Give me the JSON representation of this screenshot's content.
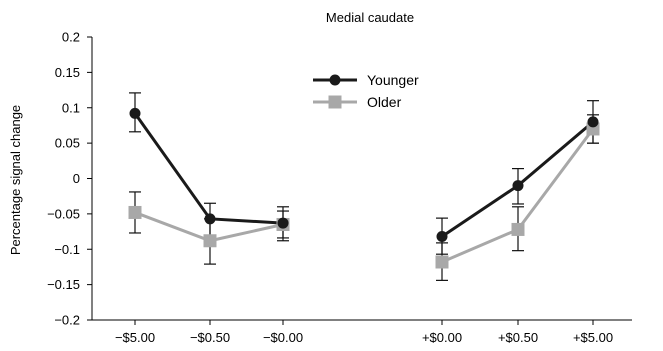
{
  "chart_data": {
    "type": "line",
    "title": "Medial caudate",
    "ylabel": "Percentage signal change",
    "xlabel": "",
    "ylim": [
      -0.2,
      0.2
    ],
    "yticks": [
      0.2,
      0.15,
      0.1,
      0.05,
      0,
      -0.05,
      -0.1,
      -0.15,
      -0.2
    ],
    "ytick_labels": [
      "0.2",
      "0.15",
      "0.1",
      "0.05",
      "0",
      "−0.05",
      "−0.1",
      "−0.15",
      "−0.2"
    ],
    "categories": [
      "−$5.00",
      "−$0.50",
      "−$0.00",
      "+$0.00",
      "+$0.50",
      "+$5.00"
    ],
    "legend_position": "top-center",
    "series": [
      {
        "name": "Younger",
        "color": "#1a1a1a",
        "marker": "circle",
        "groups": [
          {
            "categories": [
              "−$5.00",
              "−$0.50",
              "−$0.00"
            ],
            "values": [
              0.092,
              -0.057,
              -0.063
            ],
            "err_lo": [
              0.066,
              -0.081,
              -0.088
            ],
            "err_hi": [
              0.121,
              -0.035,
              -0.04
            ]
          },
          {
            "categories": [
              "+$0.00",
              "+$0.50",
              "+$5.00"
            ],
            "values": [
              -0.082,
              -0.01,
              0.08
            ],
            "err_lo": [
              -0.107,
              -0.036,
              0.05
            ],
            "err_hi": [
              -0.056,
              0.014,
              0.11
            ]
          }
        ]
      },
      {
        "name": "Older",
        "color": "#a8a8a8",
        "marker": "square",
        "groups": [
          {
            "categories": [
              "−$5.00",
              "−$0.50",
              "−$0.00"
            ],
            "values": [
              -0.048,
              -0.088,
              -0.065
            ],
            "err_lo": [
              -0.077,
              -0.121,
              -0.084
            ],
            "err_hi": [
              -0.019,
              -0.057,
              -0.046
            ]
          },
          {
            "categories": [
              "+$0.00",
              "+$0.50",
              "+$5.00"
            ],
            "values": [
              -0.118,
              -0.072,
              0.07
            ],
            "err_lo": [
              -0.144,
              -0.102,
              0.05
            ],
            "err_hi": [
              -0.091,
              -0.04,
              0.09
            ]
          }
        ]
      }
    ]
  }
}
